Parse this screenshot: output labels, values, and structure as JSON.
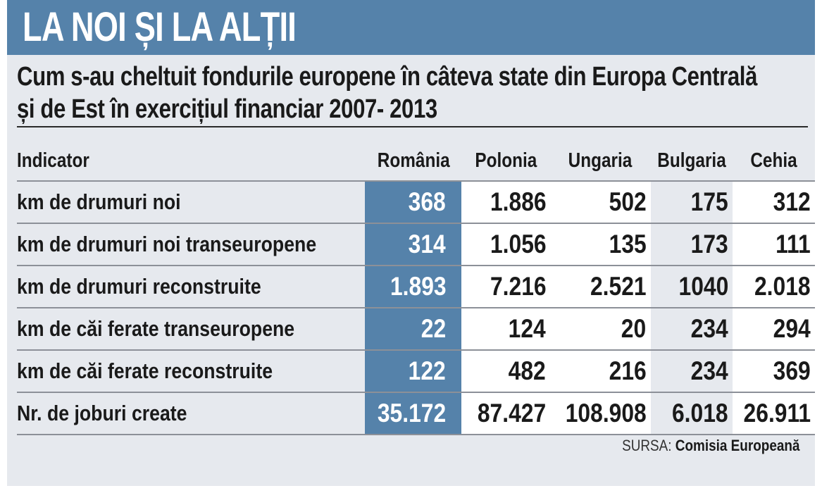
{
  "banner": {
    "title": "LA NOI ȘI LA ALȚII"
  },
  "subtitle": {
    "line1": "Cum s-au cheltuit fondurile europene în câteva state din Europa Centrală",
    "line2": "și de Est în exercițiul financiar 2007- 2013"
  },
  "table": {
    "headers": [
      "Indicator",
      "România",
      "Polonia",
      "Ungaria",
      "Bulgaria",
      "Cehia"
    ],
    "rows": [
      {
        "label": "km de drumuri noi",
        "values": [
          "368",
          "1.886",
          "502",
          "175",
          "312"
        ]
      },
      {
        "label": "km de drumuri noi transeuropene",
        "values": [
          "314",
          "1.056",
          "135",
          "173",
          "111"
        ]
      },
      {
        "label": "km de drumuri reconstruite",
        "values": [
          "1.893",
          "7.216",
          "2.521",
          "1040",
          "2.018"
        ]
      },
      {
        "label": "km de căi ferate transeuropene",
        "values": [
          "22",
          "124",
          "20",
          "234",
          "294"
        ]
      },
      {
        "label": "km de căi ferate reconstruite",
        "values": [
          "122",
          "482",
          "216",
          "234",
          "369"
        ]
      },
      {
        "label": "Nr. de joburi create",
        "values": [
          "35.172",
          "87.427",
          "108.908",
          "6.018",
          "26.911"
        ]
      }
    ]
  },
  "source": {
    "prefix": "SURSA:",
    "name": "Comisia Europeană"
  },
  "colors": {
    "accent": "#5582aa",
    "panel": "#e6e9ee"
  }
}
